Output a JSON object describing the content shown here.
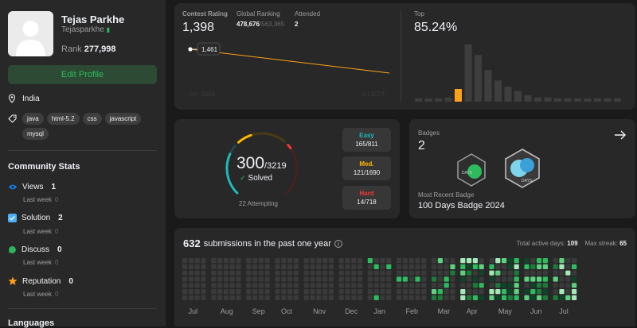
{
  "profile": {
    "name": "Tejas Parkhe",
    "handle": "Tejasparkhe",
    "rank_label": "Rank",
    "rank_value": "277,998",
    "edit_label": "Edit Profile",
    "location": "India",
    "skills": [
      "java",
      "html-5.2",
      "css",
      "javascript",
      "mysql"
    ]
  },
  "community": {
    "title": "Community Stats",
    "stats": [
      {
        "label": "Views",
        "value": "1",
        "sub": "Last week",
        "delta": "0",
        "color": "#0a84ff"
      },
      {
        "label": "Solution",
        "value": "2",
        "sub": "Last week",
        "delta": "0",
        "color": "#4db0f7"
      },
      {
        "label": "Discuss",
        "value": "0",
        "sub": "Last week",
        "delta": "0",
        "color": "#2db55d"
      },
      {
        "label": "Reputation",
        "value": "0",
        "sub": "Last week",
        "delta": "0",
        "color": "#ffa116"
      }
    ],
    "languages_title": "Languages"
  },
  "contest": {
    "rating_label": "Contest Rating",
    "rating": "1,398",
    "global_label": "Global Ranking",
    "global": "478,676",
    "global_total": "/563,365",
    "attended_label": "Attended",
    "attended": "2",
    "point_label": "1,461",
    "x_start": "Jun 2024",
    "x_end": "Jul 2024",
    "top_label": "Top",
    "top_value": "85.24%"
  },
  "histogram": {
    "values": [
      1,
      1,
      1,
      2,
      6,
      27,
      22,
      15,
      10,
      7,
      5,
      3,
      2,
      2,
      1,
      1,
      1,
      1,
      1,
      1,
      1
    ],
    "highlight_index": 4
  },
  "solved": {
    "count": "300",
    "total": "/3219",
    "label": "Solved",
    "attempting": "22 Attempting",
    "easy_label": "Easy",
    "easy": "165/811",
    "medium_label": "Med.",
    "medium": "121/1690",
    "hard_label": "Hard",
    "hard": "14/718",
    "easy_fraction": 0.204,
    "medium_fraction": 0.072,
    "hard_fraction": 0.019
  },
  "badges": {
    "label": "Badges",
    "count": "2",
    "recent_label": "Most Recent Badge",
    "recent": "100 Days Badge 2024",
    "badge1_text": "DAYS",
    "badge2_text": "DAYS"
  },
  "submissions": {
    "count": "632",
    "text": "submissions in the past one year",
    "active_label": "Total active days:",
    "active": "109",
    "streak_label": "Max streak:",
    "streak": "65",
    "months": [
      "Jul",
      "Aug",
      "Sep",
      "Oct",
      "Nov",
      "Dec",
      "Jan",
      "Feb",
      "Mar",
      "Apr",
      "May",
      "Jun",
      "Jul"
    ]
  },
  "colors": {
    "accent": "#ffa116",
    "easy": "#1cbaba",
    "medium": "#ffb700",
    "hard": "#f63737",
    "green": "#2cbb5d"
  }
}
